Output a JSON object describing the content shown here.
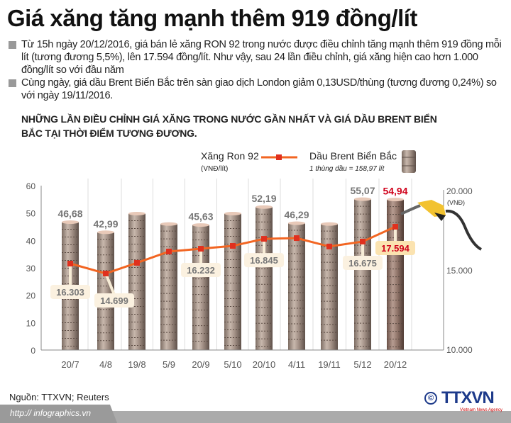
{
  "title": "Giá xăng tăng mạnh thêm 919 đồng/lít",
  "bullets": [
    "Từ 15h ngày 20/12/2016, giá bán lẻ xăng RON 92 trong nước được điều chỉnh tăng mạnh thêm 919 đồng mỗi lít (tương đương 5,5%), lên 17.594 đồng/lít. Như vậy, sau 24 lần điều chỉnh, giá xăng hiện cao hơn 1.000 đồng/lít so với đầu năm",
    "Cùng ngày, giá dầu Brent Biển Bắc trên sàn giao dịch London giảm 0,13USD/thùng (tương đương 0,24%) so với ngày 19/11/2016."
  ],
  "chart_data": {
    "type": "bar+line",
    "title": "NHỮNG LẦN ĐIỀU CHỈNH GIÁ XĂNG TRONG NƯỚC GẦN NHẤT VÀ GIÁ DẦU BRENT BIỂN BẮC TẠI THỜI ĐIỂM TƯƠNG ĐƯƠNG.",
    "categories": [
      "20/7",
      "4/8",
      "19/8",
      "5/9",
      "20/9",
      "5/10",
      "20/10",
      "4/11",
      "19/11",
      "5/12",
      "20/12"
    ],
    "left_axis": {
      "ticks": [
        "0",
        "10",
        "20",
        "30",
        "40",
        "50",
        "60"
      ],
      "range": [
        0,
        60
      ]
    },
    "right_axis": {
      "ticks": [
        "10.000",
        "15.000",
        "20.000"
      ],
      "unit": "(VNĐ)",
      "range": [
        10000,
        20000
      ]
    },
    "grid": "vertical",
    "series": [
      {
        "name": "Dầu Brent Biển Bắc",
        "note": "1 thùng dầu = 158,97 lít",
        "kind": "bar",
        "values": [
          46.68,
          42.99,
          49.8,
          46.0,
          45.63,
          49.8,
          52.19,
          46.29,
          46.0,
          55.07,
          54.94
        ],
        "labels": [
          "46,68",
          "42,99",
          "",
          "",
          "45,63",
          "",
          "52,19",
          "46,29",
          "",
          "55,07",
          "54,94"
        ]
      },
      {
        "name": "Xăng Ron 92",
        "unit": "(VNĐ/lít)",
        "kind": "line",
        "color": "#f26522",
        "values": [
          16303,
          14699,
          15360,
          16060,
          16232,
          16410,
          16845,
          16890,
          16370,
          16675,
          17594
        ],
        "labels": [
          "16.303",
          "14.699",
          "",
          "",
          "16.232",
          "",
          "16.845",
          "",
          "",
          "16.675",
          "17.594"
        ]
      }
    ],
    "highlight_color": "#d0021b"
  },
  "source": "Nguồn: TTXVN; Reuters",
  "url": "http:// infographics.vn",
  "logo": {
    "text": "TTXVN",
    "sub": "Vietnam News Agency",
    "copyright": "©"
  }
}
